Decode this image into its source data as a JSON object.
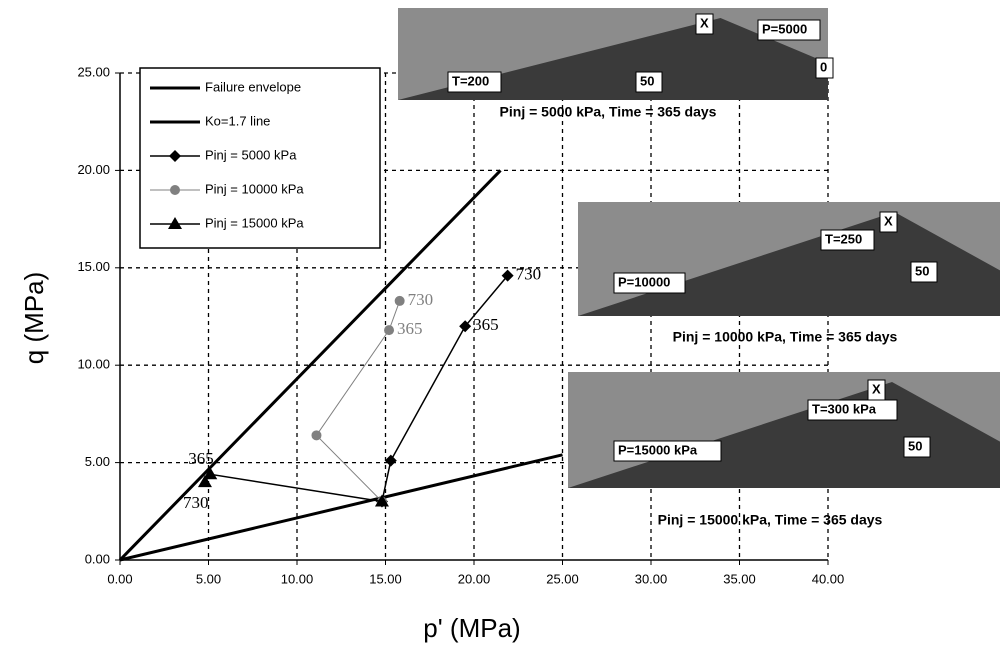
{
  "chart_data": {
    "type": "line",
    "xlabel": "p' (MPa)",
    "ylabel": "q (MPa)",
    "xlim": [
      0,
      40
    ],
    "ylim": [
      0,
      25
    ],
    "xticks": [
      {
        "value": 0,
        "label": "0.00"
      },
      {
        "value": 5,
        "label": "5.00"
      },
      {
        "value": 10,
        "label": "10.00"
      },
      {
        "value": 15,
        "label": "15.00"
      },
      {
        "value": 20,
        "label": "20.00"
      },
      {
        "value": 25,
        "label": "25.00"
      },
      {
        "value": 30,
        "label": "30.00"
      },
      {
        "value": 35,
        "label": "35.00"
      },
      {
        "value": 40,
        "label": "40.00"
      }
    ],
    "yticks": [
      {
        "value": 0,
        "label": "0.00"
      },
      {
        "value": 5,
        "label": "5.00"
      },
      {
        "value": 10,
        "label": "10.00"
      },
      {
        "value": 15,
        "label": "15.00"
      },
      {
        "value": 20,
        "label": "20.00"
      },
      {
        "value": 25,
        "label": "25.00"
      }
    ],
    "grid": true,
    "series": [
      {
        "name": "Failure envelope",
        "color": "#000000",
        "marker": "none",
        "width": 3,
        "x": [
          0,
          21.5
        ],
        "values": [
          0,
          20
        ]
      },
      {
        "name": "Ko=1.7 line",
        "color": "#000000",
        "marker": "none",
        "width": 3,
        "x": [
          0,
          25
        ],
        "values": [
          0,
          5.4
        ]
      },
      {
        "name": "Pinj = 5000 kPa",
        "color": "#000000",
        "marker": "diamond",
        "width": 1.5,
        "x": [
          14.8,
          15.3,
          19.5,
          21.9
        ],
        "values": [
          3.0,
          5.1,
          12.0,
          14.6
        ],
        "value_labels": [
          null,
          null,
          "365",
          "730"
        ]
      },
      {
        "name": "Pinj = 10000 kPa",
        "color": "#808080",
        "marker": "circle",
        "width": 1,
        "x": [
          14.8,
          11.1,
          15.2,
          15.8
        ],
        "values": [
          3.0,
          6.4,
          11.8,
          13.3
        ],
        "value_labels": [
          null,
          null,
          "365",
          "730"
        ]
      },
      {
        "name": "Pinj = 15000 kPa",
        "color": "#000000",
        "marker": "triangle",
        "width": 1.5,
        "x": [
          14.8,
          5.1,
          4.8
        ],
        "values": [
          3.0,
          4.4,
          4.0
        ],
        "value_labels": [
          null,
          "365",
          "730"
        ]
      }
    ],
    "insets": [
      {
        "labels": [
          "T=200",
          "50",
          "P=5000",
          "X",
          "0"
        ],
        "caption": "Pinj = 5000 kPa, Time = 365 days"
      },
      {
        "labels": [
          "T=250",
          "50",
          "P=10000",
          "X"
        ],
        "caption": "Pinj = 10000 kPa, Time = 365 days"
      },
      {
        "labels": [
          "T=300 kPa",
          "50",
          "P=15000 kPa",
          "X"
        ],
        "caption": "Pinj = 15000 kPa, Time = 365 days"
      }
    ]
  }
}
